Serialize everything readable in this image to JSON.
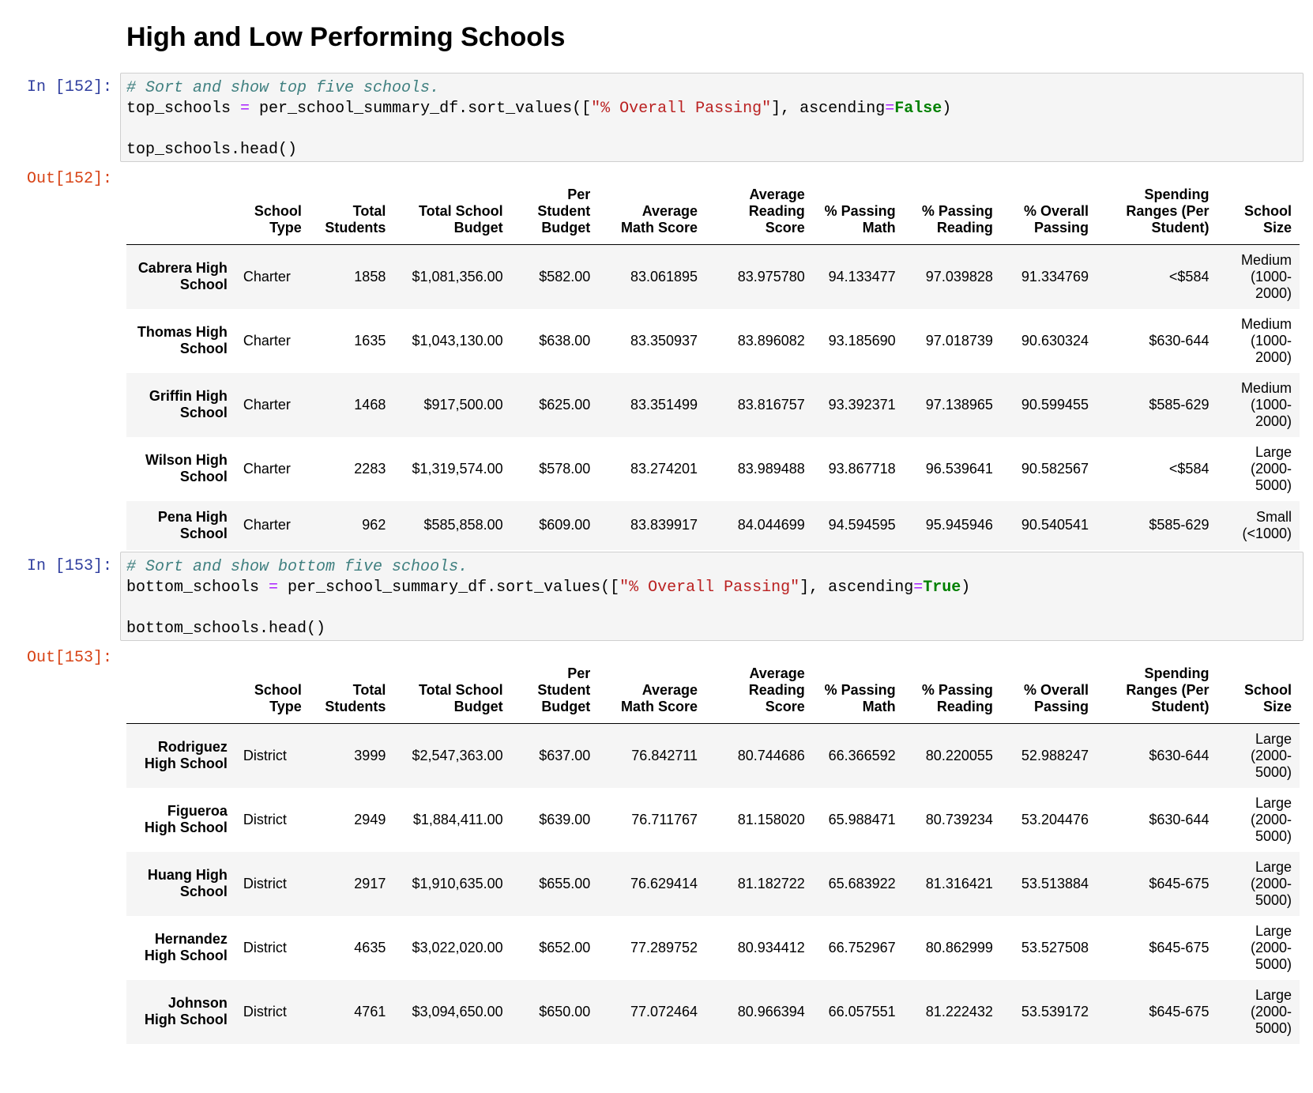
{
  "heading": "High and Low Performing Schools",
  "cells": [
    {
      "in_prompt": "In [152]:",
      "out_prompt": "Out[152]:",
      "code": [
        [
          {
            "t": "c",
            "v": "# Sort and show top five schools."
          }
        ],
        [
          {
            "t": "n",
            "v": "top_schools "
          },
          {
            "t": "o",
            "v": "="
          },
          {
            "t": "n",
            "v": " per_school_summary_df.sort_values(["
          },
          {
            "t": "s",
            "v": "\"% Overall Passing\""
          },
          {
            "t": "n",
            "v": "], ascending"
          },
          {
            "t": "o",
            "v": "="
          },
          {
            "t": "k",
            "v": "False"
          },
          {
            "t": "n",
            "v": ")"
          }
        ],
        [],
        [
          {
            "t": "n",
            "v": "top_schools.head()"
          }
        ]
      ],
      "columns": [
        "School Type",
        "Total Students",
        "Total School Budget",
        "Per Student Budget",
        "Average Math Score",
        "Average Reading Score",
        "% Passing Math",
        "% Passing Reading",
        "% Overall Passing",
        "Spending Ranges (Per Student)",
        "School Size"
      ],
      "rows": [
        [
          "Cabrera High School",
          "Charter",
          "1858",
          "$1,081,356.00",
          "$582.00",
          "83.061895",
          "83.975780",
          "94.133477",
          "97.039828",
          "91.334769",
          "<$584",
          "Medium (1000-2000)"
        ],
        [
          "Thomas High School",
          "Charter",
          "1635",
          "$1,043,130.00",
          "$638.00",
          "83.350937",
          "83.896082",
          "93.185690",
          "97.018739",
          "90.630324",
          "$630-644",
          "Medium (1000-2000)"
        ],
        [
          "Griffin High School",
          "Charter",
          "1468",
          "$917,500.00",
          "$625.00",
          "83.351499",
          "83.816757",
          "93.392371",
          "97.138965",
          "90.599455",
          "$585-629",
          "Medium (1000-2000)"
        ],
        [
          "Wilson High School",
          "Charter",
          "2283",
          "$1,319,574.00",
          "$578.00",
          "83.274201",
          "83.989488",
          "93.867718",
          "96.539641",
          "90.582567",
          "<$584",
          "Large (2000-5000)"
        ],
        [
          "Pena High School",
          "Charter",
          "962",
          "$585,858.00",
          "$609.00",
          "83.839917",
          "84.044699",
          "94.594595",
          "95.945946",
          "90.540541",
          "$585-629",
          "Small (<1000)"
        ]
      ]
    },
    {
      "in_prompt": "In [153]:",
      "out_prompt": "Out[153]:",
      "code": [
        [
          {
            "t": "c",
            "v": "# Sort and show bottom five schools."
          }
        ],
        [
          {
            "t": "n",
            "v": "bottom_schools "
          },
          {
            "t": "o",
            "v": "="
          },
          {
            "t": "n",
            "v": " per_school_summary_df.sort_values(["
          },
          {
            "t": "s",
            "v": "\"% Overall Passing\""
          },
          {
            "t": "n",
            "v": "], ascending"
          },
          {
            "t": "o",
            "v": "="
          },
          {
            "t": "k",
            "v": "True"
          },
          {
            "t": "n",
            "v": ")"
          }
        ],
        [],
        [
          {
            "t": "n",
            "v": "bottom_schools.head()"
          }
        ]
      ],
      "columns": [
        "School Type",
        "Total Students",
        "Total School Budget",
        "Per Student Budget",
        "Average Math Score",
        "Average Reading Score",
        "% Passing Math",
        "% Passing Reading",
        "% Overall Passing",
        "Spending Ranges (Per Student)",
        "School Size"
      ],
      "rows": [
        [
          "Rodriguez High School",
          "District",
          "3999",
          "$2,547,363.00",
          "$637.00",
          "76.842711",
          "80.744686",
          "66.366592",
          "80.220055",
          "52.988247",
          "$630-644",
          "Large (2000-5000)"
        ],
        [
          "Figueroa High School",
          "District",
          "2949",
          "$1,884,411.00",
          "$639.00",
          "76.711767",
          "81.158020",
          "65.988471",
          "80.739234",
          "53.204476",
          "$630-644",
          "Large (2000-5000)"
        ],
        [
          "Huang High School",
          "District",
          "2917",
          "$1,910,635.00",
          "$655.00",
          "76.629414",
          "81.182722",
          "65.683922",
          "81.316421",
          "53.513884",
          "$645-675",
          "Large (2000-5000)"
        ],
        [
          "Hernandez High School",
          "District",
          "4635",
          "$3,022,020.00",
          "$652.00",
          "77.289752",
          "80.934412",
          "66.752967",
          "80.862999",
          "53.527508",
          "$645-675",
          "Large (2000-5000)"
        ],
        [
          "Johnson High School",
          "District",
          "4761",
          "$3,094,650.00",
          "$650.00",
          "77.072464",
          "80.966394",
          "66.057551",
          "81.222432",
          "53.539172",
          "$645-675",
          "Large (2000-5000)"
        ]
      ]
    }
  ]
}
